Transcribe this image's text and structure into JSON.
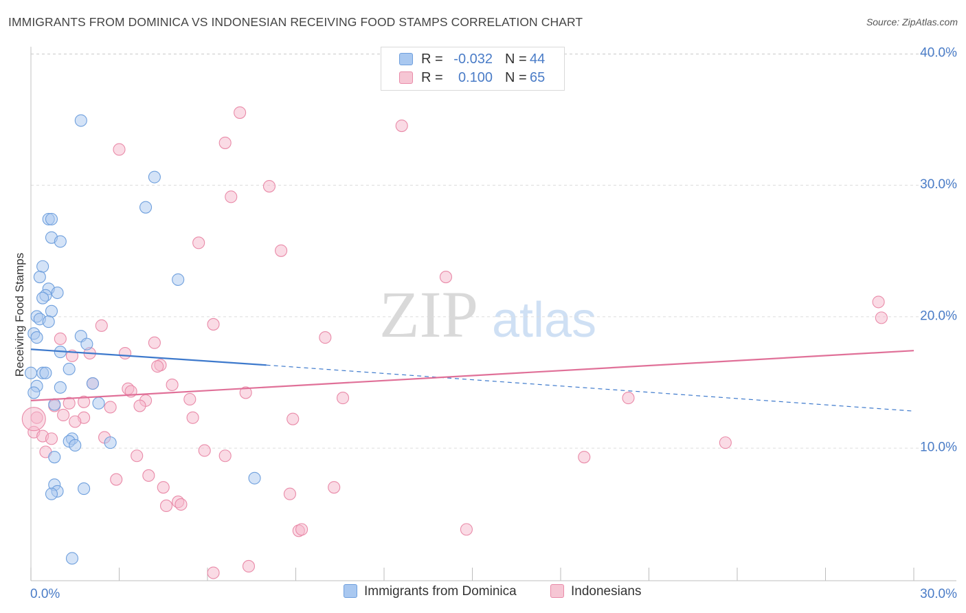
{
  "title": "IMMIGRANTS FROM DOMINICA VS INDONESIAN RECEIVING FOOD STAMPS CORRELATION CHART",
  "source": "Source: ZipAtlas.com",
  "watermark": {
    "zip": "ZIP",
    "atlas": "atlas"
  },
  "colors": {
    "blue_fill": "#a9c8f0",
    "blue_stroke": "#6e9fdd",
    "blue_line": "#3d79cc",
    "pink_fill": "#f6b8cb",
    "pink_stroke": "#e98aa8",
    "pink_line": "#e07098",
    "axis_label": "#4a7cc7",
    "grid": "#dcdcdc"
  },
  "legend_stats": [
    {
      "r_label": "R =",
      "r_value": "-0.032",
      "n_label": "N =",
      "n_value": "44"
    },
    {
      "r_label": "R =",
      "r_value": "0.100",
      "n_label": "N =",
      "n_value": "65"
    }
  ],
  "chart_data": {
    "type": "scatter",
    "title": "IMMIGRANTS FROM DOMINICA VS INDONESIAN RECEIVING FOOD STAMPS CORRELATION CHART",
    "xlabel": "",
    "ylabel": "Receiving Food Stamps",
    "xlim": [
      0,
      30
    ],
    "ylim": [
      0,
      40
    ],
    "x_tick_labels": [
      "0.0%",
      "30.0%"
    ],
    "y_ticks": [
      10,
      20,
      30,
      40
    ],
    "y_tick_labels": [
      "10.0%",
      "20.0%",
      "30.0%",
      "40.0%"
    ],
    "grid": true,
    "legend_position": "bottom",
    "series": [
      {
        "name": "Immigrants from Dominica",
        "color": "blue",
        "points": [
          [
            1.7,
            35.0
          ],
          [
            4.2,
            30.7
          ],
          [
            3.9,
            28.4
          ],
          [
            0.6,
            27.5
          ],
          [
            0.7,
            27.5
          ],
          [
            0.7,
            26.1
          ],
          [
            1.0,
            25.8
          ],
          [
            0.4,
            23.9
          ],
          [
            5.0,
            22.9
          ],
          [
            0.3,
            23.1
          ],
          [
            0.6,
            22.2
          ],
          [
            0.5,
            21.7
          ],
          [
            0.9,
            21.9
          ],
          [
            0.4,
            21.5
          ],
          [
            0.7,
            20.5
          ],
          [
            0.2,
            20.1
          ],
          [
            0.3,
            19.9
          ],
          [
            0.6,
            19.7
          ],
          [
            0.1,
            18.8
          ],
          [
            0.2,
            18.5
          ],
          [
            1.7,
            18.6
          ],
          [
            1.9,
            18.0
          ],
          [
            1.0,
            17.4
          ],
          [
            1.3,
            16.1
          ],
          [
            0.0,
            15.8
          ],
          [
            0.4,
            15.8
          ],
          [
            0.5,
            15.8
          ],
          [
            2.1,
            15.0
          ],
          [
            0.2,
            14.8
          ],
          [
            1.0,
            14.7
          ],
          [
            0.1,
            14.3
          ],
          [
            0.8,
            13.4
          ],
          [
            2.3,
            13.5
          ],
          [
            1.4,
            10.8
          ],
          [
            1.3,
            10.6
          ],
          [
            1.5,
            10.3
          ],
          [
            2.7,
            10.5
          ],
          [
            0.8,
            9.4
          ],
          [
            0.8,
            7.3
          ],
          [
            0.9,
            6.8
          ],
          [
            0.7,
            6.6
          ],
          [
            1.8,
            7.0
          ],
          [
            7.6,
            7.8
          ],
          [
            1.4,
            1.7
          ]
        ],
        "trend": {
          "x0": 0,
          "y0": 17.6,
          "x1": 8.0,
          "y1": 16.4,
          "dash_x1": 30,
          "dash_y1": 12.9
        }
      },
      {
        "name": "Indonesians",
        "color": "pink",
        "points": [
          [
            7.1,
            35.6
          ],
          [
            12.6,
            34.6
          ],
          [
            3.0,
            32.8
          ],
          [
            6.6,
            33.3
          ],
          [
            8.1,
            30.0
          ],
          [
            6.8,
            29.2
          ],
          [
            5.7,
            25.7
          ],
          [
            8.5,
            25.1
          ],
          [
            14.1,
            23.1
          ],
          [
            28.8,
            21.2
          ],
          [
            28.9,
            20.0
          ],
          [
            6.2,
            19.5
          ],
          [
            2.4,
            19.4
          ],
          [
            1.0,
            18.4
          ],
          [
            10.0,
            18.5
          ],
          [
            4.2,
            18.1
          ],
          [
            1.4,
            17.1
          ],
          [
            2.0,
            17.3
          ],
          [
            3.2,
            17.3
          ],
          [
            4.4,
            16.4
          ],
          [
            4.3,
            16.3
          ],
          [
            2.1,
            15.0
          ],
          [
            4.8,
            14.9
          ],
          [
            3.3,
            14.6
          ],
          [
            3.4,
            14.4
          ],
          [
            7.3,
            14.3
          ],
          [
            5.4,
            13.8
          ],
          [
            10.6,
            13.9
          ],
          [
            20.3,
            13.9
          ],
          [
            3.9,
            13.7
          ],
          [
            1.8,
            13.6
          ],
          [
            1.3,
            13.5
          ],
          [
            3.7,
            13.3
          ],
          [
            2.7,
            13.2
          ],
          [
            0.8,
            13.3
          ],
          [
            0.2,
            12.4
          ],
          [
            1.1,
            12.6
          ],
          [
            1.8,
            12.4
          ],
          [
            5.5,
            12.4
          ],
          [
            8.9,
            12.3
          ],
          [
            1.5,
            12.1
          ],
          [
            0.1,
            11.3
          ],
          [
            0.4,
            11.0
          ],
          [
            0.7,
            10.8
          ],
          [
            2.5,
            10.9
          ],
          [
            23.6,
            10.5
          ],
          [
            5.9,
            9.9
          ],
          [
            6.6,
            9.5
          ],
          [
            18.8,
            9.4
          ],
          [
            3.6,
            9.5
          ],
          [
            0.5,
            9.8
          ],
          [
            4.0,
            8.0
          ],
          [
            2.9,
            7.7
          ],
          [
            4.5,
            7.1
          ],
          [
            10.3,
            7.1
          ],
          [
            8.8,
            6.6
          ],
          [
            5.0,
            6.0
          ],
          [
            5.1,
            5.8
          ],
          [
            4.6,
            5.7
          ],
          [
            9.1,
            3.8
          ],
          [
            9.2,
            3.9
          ],
          [
            14.8,
            3.9
          ],
          [
            7.4,
            1.1
          ],
          [
            6.2,
            0.6
          ],
          [
            0.1,
            12.3
          ]
        ],
        "trend": {
          "x0": 0,
          "y0": 13.7,
          "x1": 30,
          "y1": 17.5
        }
      }
    ]
  },
  "legend_bottom": [
    "Immigrants from Dominica",
    "Indonesians"
  ]
}
